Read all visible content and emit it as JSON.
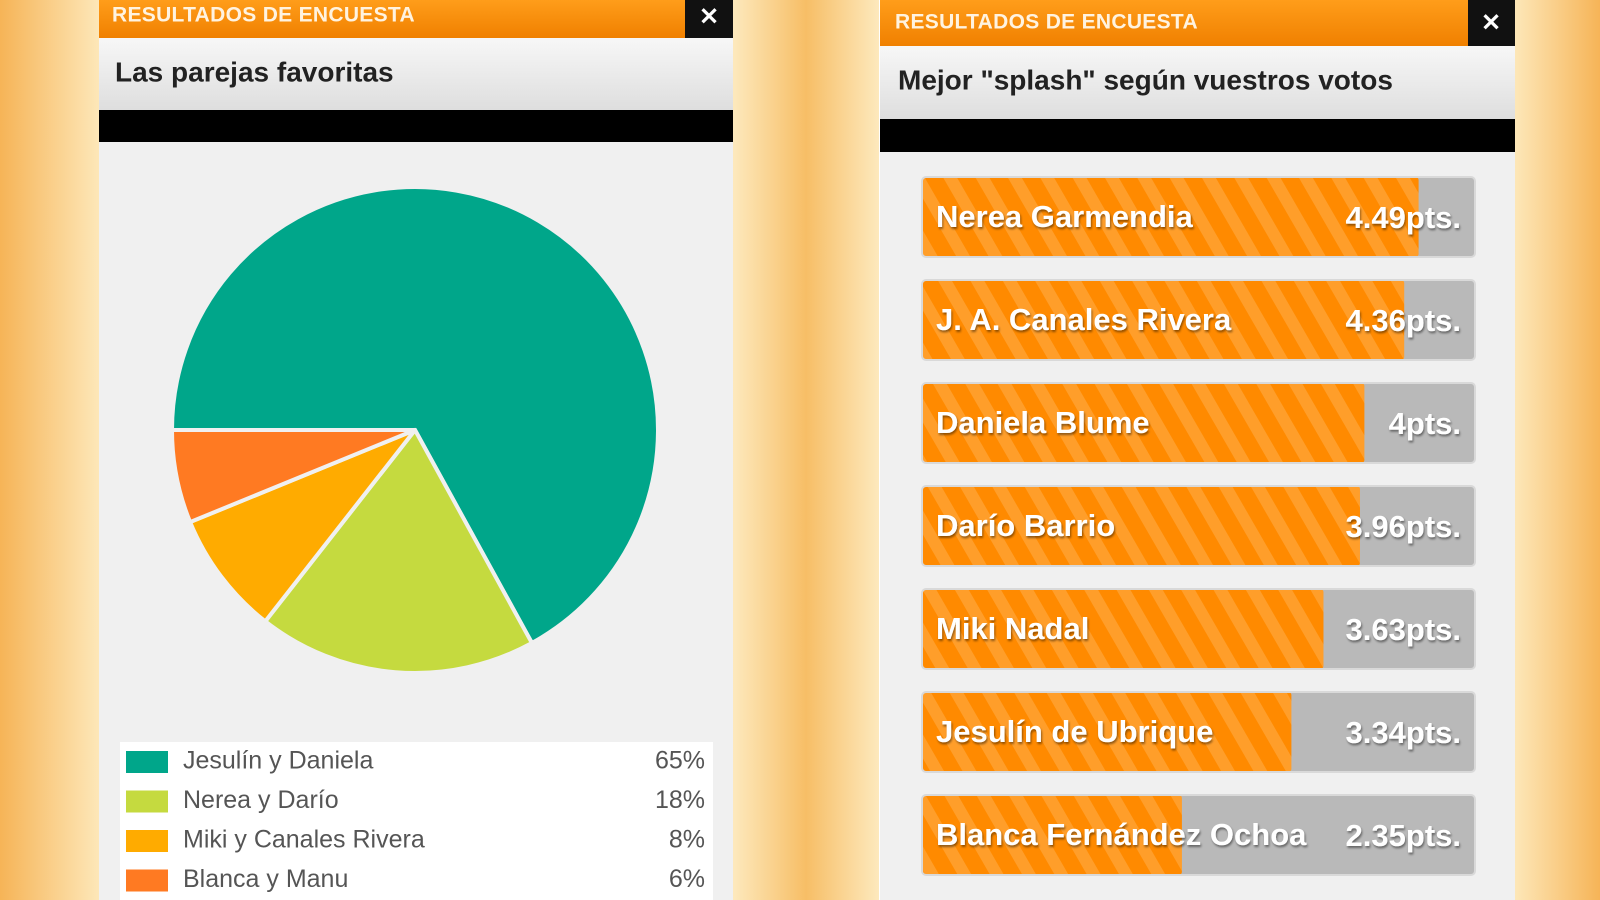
{
  "chart_data": [
    {
      "type": "pie",
      "header": "RESULTADOS DE ENCUESTA",
      "close": "✕",
      "title": "Las parejas favoritas",
      "categories": [
        "Jesulín y Daniela",
        "Nerea y Darío",
        "Miki y Canales Rivera",
        "Blanca y Manu"
      ],
      "values": [
        65,
        18,
        8,
        6
      ],
      "value_labels": [
        "65%",
        "18%",
        "8%",
        "6%"
      ],
      "colors": [
        "#00a68a",
        "#c5da3f",
        "#ffab00",
        "#ff7a22"
      ]
    },
    {
      "type": "bar",
      "header": "RESULTADOS DE ENCUESTA",
      "close": "✕",
      "title": "Mejor \"splash\" según vuestros votos",
      "categories": [
        "Nerea Garmendia",
        "J. A. Canales Rivera",
        "Daniela Blume",
        "Darío Barrio",
        "Miki Nadal",
        "Jesulín de Ubrique",
        "Blanca Fernández Ochoa"
      ],
      "values": [
        4.49,
        4.36,
        4,
        3.96,
        3.63,
        3.34,
        2.35
      ],
      "value_labels": [
        "4.49pts.",
        "4.36pts.",
        "4pts.",
        "3.96pts.",
        "3.63pts.",
        "3.34pts.",
        "2.35pts."
      ],
      "color": "#ff8a00",
      "xlim": [
        0,
        5
      ]
    }
  ]
}
